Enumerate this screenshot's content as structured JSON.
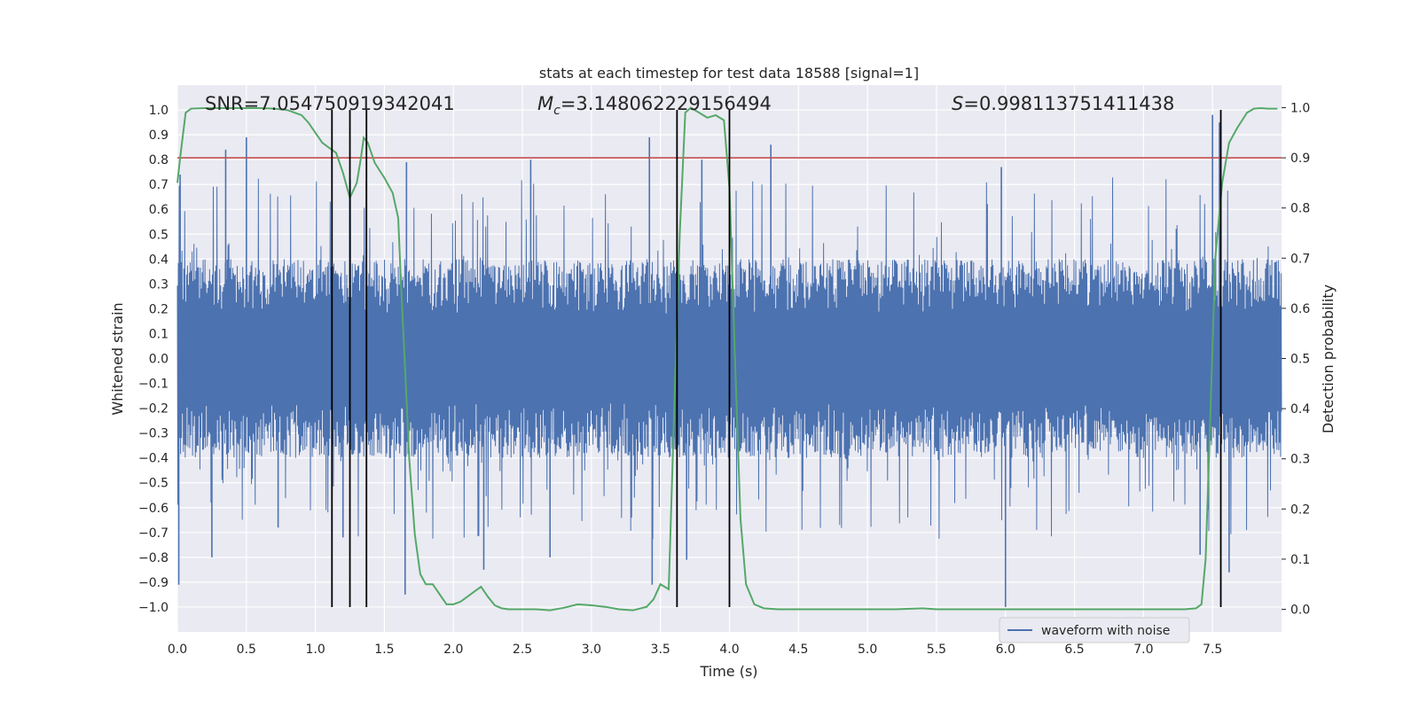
{
  "chart_data": {
    "type": "line",
    "title": "stats at each timestep for test data 18588 [signal=1]",
    "xlabel": "Time (s)",
    "ylabel": "Whitened strain",
    "y2label": "Detection probability",
    "xlim": [
      0,
      8.0
    ],
    "ylim": [
      -1.1,
      1.1
    ],
    "y2lim": [
      -0.045,
      1.045
    ],
    "xticks": [
      0.0,
      0.5,
      1.0,
      1.5,
      2.0,
      2.5,
      3.0,
      3.5,
      4.0,
      4.5,
      5.0,
      5.5,
      6.0,
      6.5,
      7.0,
      7.5
    ],
    "yticks": [
      1.0,
      0.9,
      0.8,
      0.7,
      0.6,
      0.5,
      0.4,
      0.3,
      0.2,
      0.1,
      0.0,
      -0.1,
      -0.2,
      -0.3,
      -0.4,
      -0.5,
      -0.6,
      -0.7,
      -0.8,
      -0.9,
      -1.0
    ],
    "y2ticks": [
      1.0,
      0.9,
      0.8,
      0.7,
      0.6,
      0.5,
      0.4,
      0.3,
      0.2,
      0.1,
      0.0
    ],
    "annotations": {
      "snr": "SNR=7.054750919342041",
      "mc_label": "M",
      "mc_sub": "c",
      "mc_value": "=3.148062229156494",
      "s_label": "S",
      "s_value": "=0.998113751411438"
    },
    "legend": {
      "label": "waveform with noise",
      "location": "lower-right"
    },
    "threshold": {
      "value": 0.9,
      "axis": "right",
      "color": "#c44e52"
    },
    "vertical_lines": [
      1.12,
      1.25,
      1.37,
      3.62,
      4.0,
      7.56
    ],
    "waveform": {
      "name": "waveform with noise",
      "color": "#4c72b0",
      "duration": 8.0,
      "envelope_abs": 0.4,
      "spikes": [
        {
          "x": 0.01,
          "y": -0.91
        },
        {
          "x": 0.02,
          "y": 0.74
        },
        {
          "x": 0.25,
          "y": -0.8
        },
        {
          "x": 0.35,
          "y": 0.84
        },
        {
          "x": 0.5,
          "y": 0.89
        },
        {
          "x": 0.73,
          "y": -0.68
        },
        {
          "x": 1.2,
          "y": -0.72
        },
        {
          "x": 1.65,
          "y": -0.95
        },
        {
          "x": 1.66,
          "y": 0.79
        },
        {
          "x": 2.22,
          "y": -0.85
        },
        {
          "x": 2.56,
          "y": 0.8
        },
        {
          "x": 2.7,
          "y": -0.8
        },
        {
          "x": 3.42,
          "y": 0.89
        },
        {
          "x": 3.44,
          "y": -0.91
        },
        {
          "x": 3.69,
          "y": -0.81
        },
        {
          "x": 3.8,
          "y": 0.8
        },
        {
          "x": 4.3,
          "y": 0.86
        },
        {
          "x": 5.97,
          "y": 0.77
        },
        {
          "x": 6.0,
          "y": -1.0
        },
        {
          "x": 7.41,
          "y": -0.79
        },
        {
          "x": 7.5,
          "y": 0.98
        },
        {
          "x": 7.55,
          "y": 0.95
        },
        {
          "x": 7.62,
          "y": -0.86
        }
      ]
    },
    "probability": {
      "name": "detection probability",
      "color": "#55a868",
      "x": [
        0.0,
        0.02,
        0.06,
        0.1,
        0.2,
        0.3,
        0.5,
        0.6,
        0.7,
        0.8,
        0.85,
        0.9,
        0.95,
        1.0,
        1.05,
        1.1,
        1.15,
        1.2,
        1.25,
        1.3,
        1.33,
        1.35,
        1.38,
        1.43,
        1.5,
        1.56,
        1.6,
        1.62,
        1.65,
        1.68,
        1.72,
        1.76,
        1.8,
        1.85,
        1.9,
        1.95,
        2.0,
        2.05,
        2.1,
        2.15,
        2.2,
        2.25,
        2.3,
        2.35,
        2.4,
        2.5,
        2.6,
        2.7,
        2.8,
        2.9,
        3.0,
        3.1,
        3.2,
        3.3,
        3.4,
        3.45,
        3.5,
        3.56,
        3.6,
        3.64,
        3.68,
        3.72,
        3.78,
        3.84,
        3.9,
        3.96,
        4.0,
        4.04,
        4.08,
        4.12,
        4.18,
        4.25,
        4.35,
        4.6,
        5.0,
        5.2,
        5.4,
        5.5,
        5.6,
        5.8,
        6.0,
        6.2,
        6.4,
        6.5,
        6.6,
        7.0,
        7.2,
        7.3,
        7.38,
        7.42,
        7.45,
        7.48,
        7.52,
        7.57,
        7.62,
        7.68,
        7.75,
        7.8,
        7.85,
        7.9,
        7.97
      ],
      "y": [
        0.85,
        0.9,
        0.99,
        0.998,
        0.999,
        0.999,
        0.999,
        0.999,
        0.998,
        0.995,
        0.99,
        0.985,
        0.97,
        0.95,
        0.93,
        0.92,
        0.91,
        0.87,
        0.82,
        0.85,
        0.9,
        0.94,
        0.93,
        0.89,
        0.86,
        0.83,
        0.78,
        0.65,
        0.48,
        0.3,
        0.15,
        0.07,
        0.05,
        0.05,
        0.03,
        0.01,
        0.01,
        0.015,
        0.025,
        0.035,
        0.045,
        0.025,
        0.008,
        0.002,
        0.0,
        0.0,
        0.0,
        -0.002,
        0.003,
        0.01,
        0.008,
        0.005,
        0.0,
        -0.002,
        0.005,
        0.02,
        0.05,
        0.04,
        0.4,
        0.75,
        0.99,
        1.0,
        0.99,
        0.98,
        0.985,
        0.975,
        0.84,
        0.5,
        0.18,
        0.05,
        0.01,
        0.002,
        0.0,
        0.0,
        0.0,
        0.0,
        0.002,
        0.0,
        0.0,
        0.0,
        0.0,
        0.0,
        0.0,
        0.0,
        0.0,
        0.0,
        0.0,
        0.0,
        0.002,
        0.01,
        0.1,
        0.35,
        0.7,
        0.85,
        0.93,
        0.96,
        0.99,
        0.998,
        0.999,
        0.998,
        0.998
      ]
    }
  }
}
